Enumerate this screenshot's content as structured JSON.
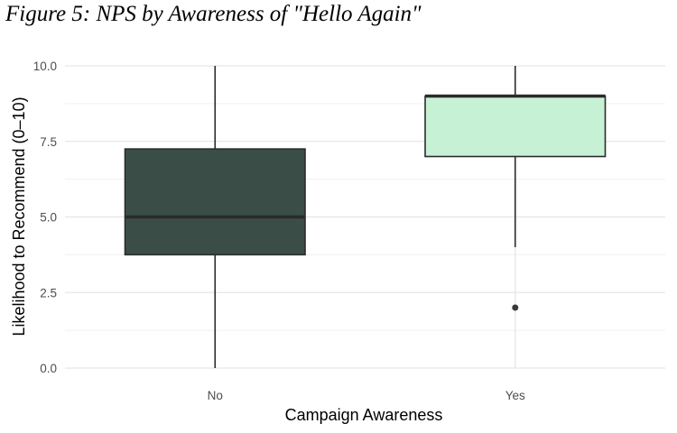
{
  "figure": {
    "title": "Figure 5: NPS by Awareness of \"Hello Again\""
  },
  "chart_data": {
    "type": "boxplot",
    "title": "Figure 5: NPS by Awareness of \"Hello Again\"",
    "xlabel": "Campaign Awareness",
    "ylabel": "Likelihood to Recommend (0–10)",
    "categories": [
      "No",
      "Yes"
    ],
    "ylim": [
      0,
      10
    ],
    "yticks": [
      0,
      2.5,
      5,
      7.5,
      10
    ],
    "ytick_labels": [
      "0.0",
      "2.5",
      "5.0",
      "7.5",
      "10.0"
    ],
    "grid": true,
    "legend": "none",
    "boxes": [
      {
        "category": "No",
        "whisker_low": 0,
        "q1": 3.75,
        "median": 5,
        "q3": 7.25,
        "whisker_high": 10,
        "outliers": [],
        "fill": "#3a4e47"
      },
      {
        "category": "Yes",
        "whisker_low": 4,
        "q1": 7,
        "median": 9,
        "q3": 9,
        "whisker_high": 10,
        "outliers": [
          2
        ],
        "fill": "#c7f1d4"
      }
    ]
  }
}
